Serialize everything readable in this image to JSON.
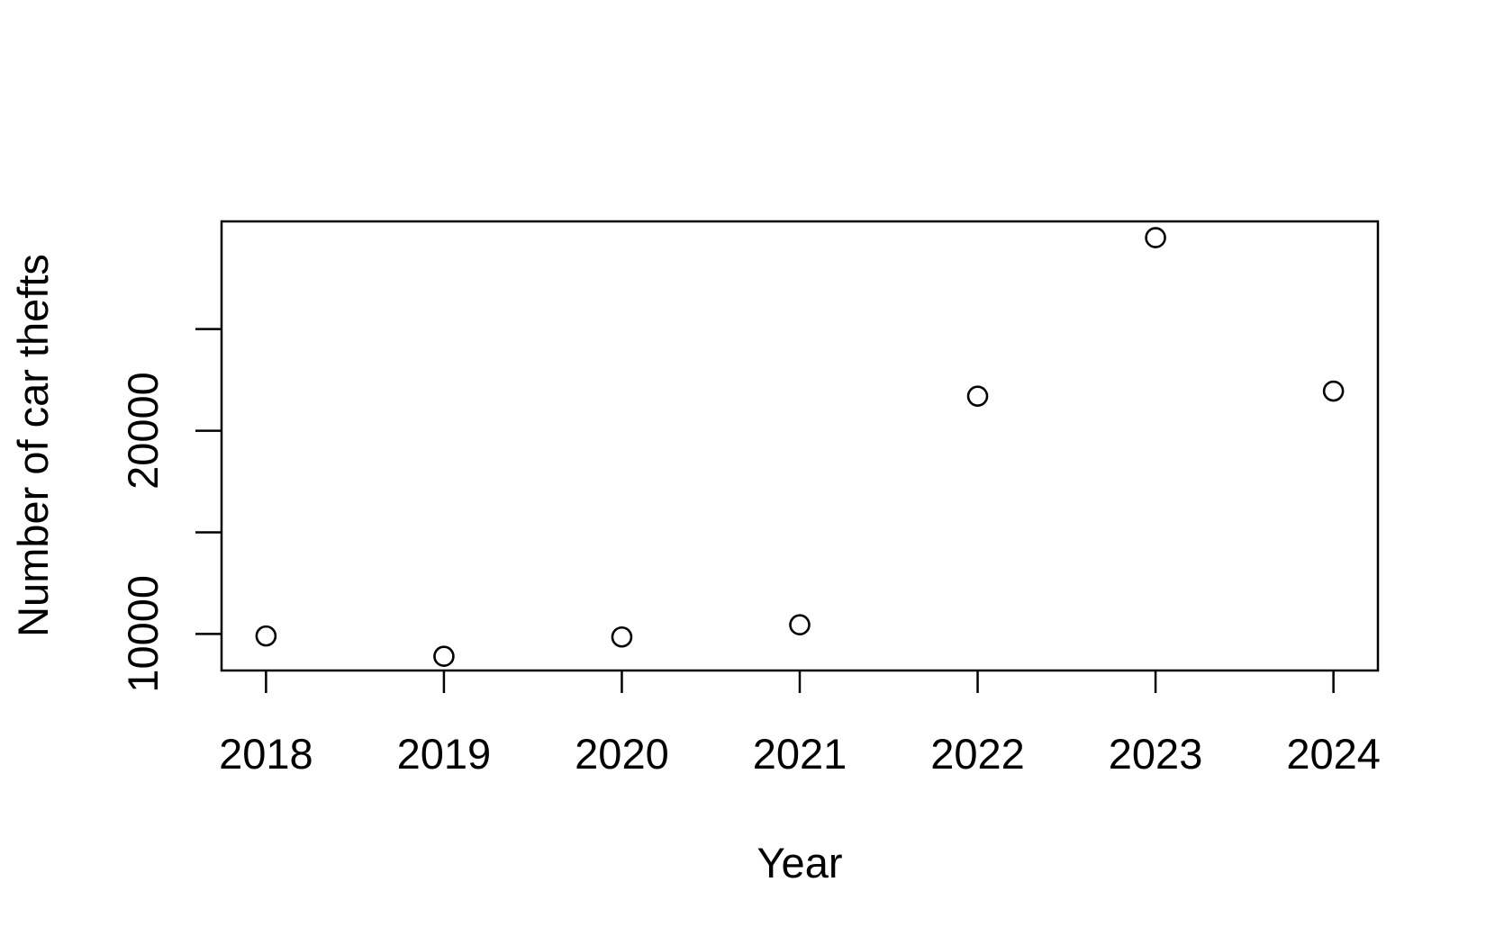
{
  "chart_data": {
    "type": "scatter",
    "title": "",
    "xlabel": "Year",
    "ylabel": "Number of car thefts",
    "x": [
      2018,
      2019,
      2020,
      2021,
      2022,
      2023,
      2024
    ],
    "y": [
      9900,
      8900,
      9850,
      10450,
      21700,
      29500,
      21950
    ],
    "xlim": [
      2017.75,
      2024.25
    ],
    "ylim": [
      8200,
      30300
    ],
    "x_ticks": [
      2018,
      2019,
      2020,
      2021,
      2022,
      2023,
      2024
    ],
    "y_ticks": [
      10000,
      15000,
      20000,
      25000
    ],
    "y_tick_labels": [
      {
        "value": 10000,
        "label": "10000"
      },
      {
        "value": 20000,
        "label": "20000"
      }
    ],
    "marker": "open-circle",
    "grid": false,
    "legend": "none",
    "colors": {
      "marker": "#000000",
      "axes": "#000000",
      "background": "#ffffff"
    }
  }
}
